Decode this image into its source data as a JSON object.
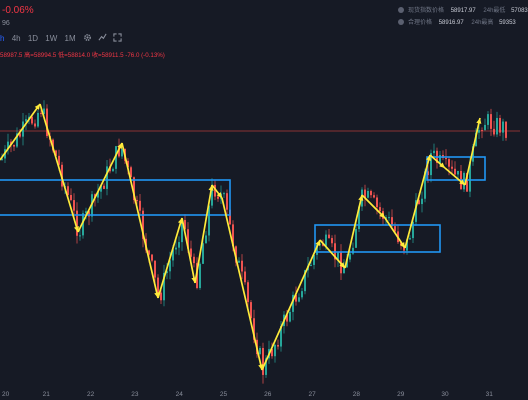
{
  "header": {
    "change_percent": "-0.06%",
    "sub_value": "96"
  },
  "stats": [
    {
      "label": "现货指数价格",
      "value": "58917.97",
      "label2": "24h最低",
      "value2": "57083"
    },
    {
      "label": "合理价格",
      "value": "58916.97",
      "label2": "24h最高",
      "value2": "59353"
    }
  ],
  "toolbar": {
    "items": [
      "h",
      "4h",
      "1D",
      "1W",
      "1M"
    ],
    "settings_icon": "gear-icon",
    "indicator_icon": "indicator-icon",
    "expand_icon": "expand-icon"
  },
  "ohlc_text": "58987.5  高=58994.5  低=58814.0  收=58911.5  -76.0 (-0.13%)",
  "x_axis_labels": [
    "20",
    "21",
    "22",
    "23",
    "24",
    "25",
    "26",
    "27",
    "28",
    "29",
    "30",
    "31"
  ],
  "colors": {
    "background": "#161a25",
    "up": "#26a69a",
    "down": "#ef5350",
    "annotation": "#ffeb3b",
    "box": "#2196f3",
    "price_line": "#b33a3a"
  }
}
